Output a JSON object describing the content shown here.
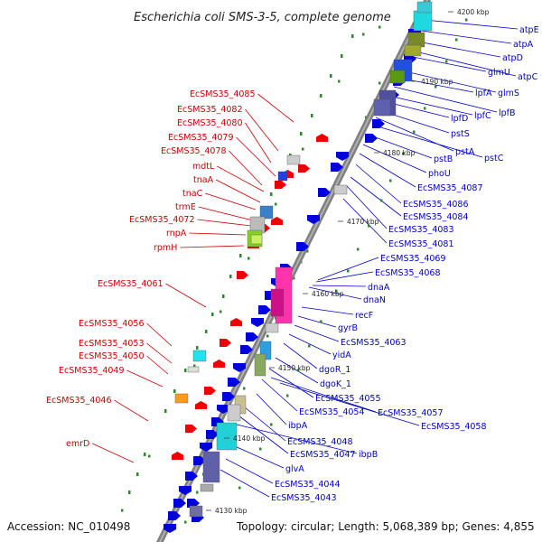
{
  "header": {
    "title": "Escherichia coli SMS-3-5, complete genome"
  },
  "footer": {
    "accession": "Accession: NC_010498",
    "topology": "Topology: circular; Length: 5,068,389 bp; Genes: 4,855"
  },
  "colors": {
    "left_label": "#cc0000",
    "right_label": "#0000cc",
    "axis": "#888888",
    "gc_dot": "#2a8a2a",
    "left_gene": "#ee0000",
    "right_gene": "#0000dd"
  },
  "ticks": [
    {
      "label": "4130 kbp",
      "offset": 0
    },
    {
      "label": "4140 kbp",
      "offset": 1
    },
    {
      "label": "4150 kbp",
      "offset": 2
    },
    {
      "label": "4160 kbp",
      "offset": 3
    },
    {
      "label": "4170 kbp",
      "offset": 4
    },
    {
      "label": "4180 kbp",
      "offset": 5
    },
    {
      "label": "4190 kbp",
      "offset": 6
    },
    {
      "label": "4200 kbp",
      "offset": 7
    }
  ],
  "left_labels": [
    {
      "text": "EcSMS35_4085"
    },
    {
      "text": "EcSMS35_4082"
    },
    {
      "text": "EcSMS35_4080"
    },
    {
      "text": "EcSMS35_4079"
    },
    {
      "text": "EcSMS35_4078"
    },
    {
      "text": "mdtL"
    },
    {
      "text": "tnaA"
    },
    {
      "text": "tnaC"
    },
    {
      "text": "trmE"
    },
    {
      "text": "EcSMS35_4072"
    },
    {
      "text": "rnpA"
    },
    {
      "text": "rpmH"
    },
    {
      "text": "EcSMS35_4061"
    },
    {
      "text": "EcSMS35_4056"
    },
    {
      "text": "EcSMS35_4053"
    },
    {
      "text": "EcSMS35_4050"
    },
    {
      "text": "EcSMS35_4049"
    },
    {
      "text": "EcSMS35_4046"
    },
    {
      "text": "emrD"
    }
  ],
  "right_labels": [
    {
      "text": "atpE"
    },
    {
      "text": "atpA"
    },
    {
      "text": "atpD"
    },
    {
      "text": "atpC"
    },
    {
      "text": "glmU"
    },
    {
      "text": "glmS"
    },
    {
      "text": "lpfA"
    },
    {
      "text": "lpfB"
    },
    {
      "text": "lpfC"
    },
    {
      "text": "lpfD"
    },
    {
      "text": "pstS"
    },
    {
      "text": "pstA"
    },
    {
      "text": "pstC"
    },
    {
      "text": "pstB"
    },
    {
      "text": "phoU"
    },
    {
      "text": "EcSMS35_4087"
    },
    {
      "text": "EcSMS35_4086"
    },
    {
      "text": "EcSMS35_4084"
    },
    {
      "text": "EcSMS35_4083"
    },
    {
      "text": "EcSMS35_4081"
    },
    {
      "text": "EcSMS35_4069"
    },
    {
      "text": "EcSMS35_4068"
    },
    {
      "text": "dnaA"
    },
    {
      "text": "dnaN"
    },
    {
      "text": "recF"
    },
    {
      "text": "gyrB"
    },
    {
      "text": "EcSMS35_4063"
    },
    {
      "text": "yidA"
    },
    {
      "text": "dgoR_1"
    },
    {
      "text": "dgoK_1"
    },
    {
      "text": "EcSMS35_4055"
    },
    {
      "text": "EcSMS35_4054"
    },
    {
      "text": "EcSMS35_4057"
    },
    {
      "text": "EcSMS35_4058"
    },
    {
      "text": "ibpA"
    },
    {
      "text": "EcSMS35_4048"
    },
    {
      "text": "EcSMS35_4047"
    },
    {
      "text": "ibpB"
    },
    {
      "text": "glvA"
    },
    {
      "text": "EcSMS35_4044"
    },
    {
      "text": "EcSMS35_4043"
    }
  ]
}
